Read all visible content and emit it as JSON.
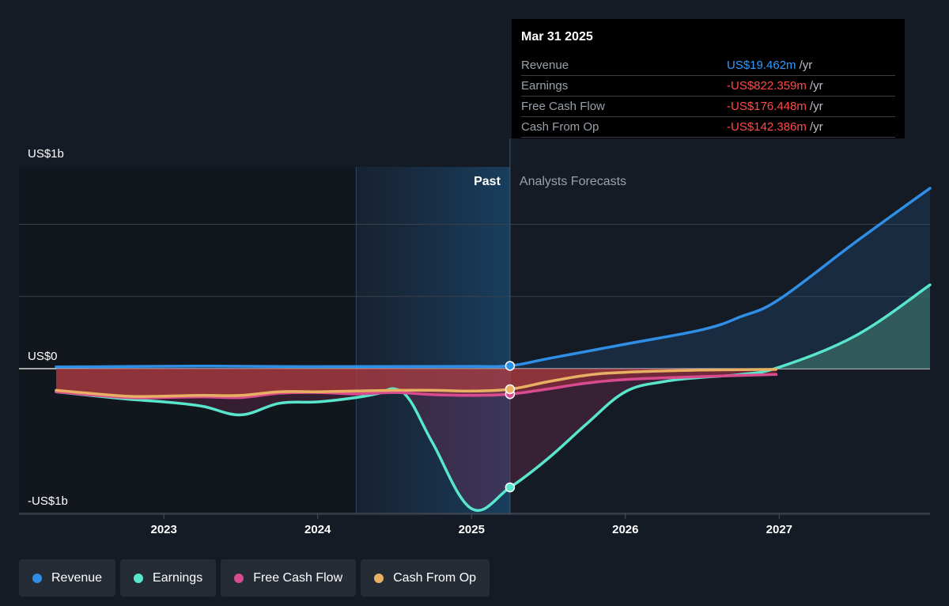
{
  "tooltip": {
    "date": "Mar 31 2025",
    "rows": [
      {
        "label": "Revenue",
        "value": "US$19.462m",
        "unit": "/yr"
      },
      {
        "label": "Earnings",
        "value": "-US$822.359m",
        "unit": "/yr"
      },
      {
        "label": "Free Cash Flow",
        "value": "-US$176.448m",
        "unit": "/yr"
      },
      {
        "label": "Cash From Op",
        "value": "-US$142.386m",
        "unit": "/yr"
      }
    ]
  },
  "legend": [
    {
      "label": "Revenue",
      "color": "#2f8fe6"
    },
    {
      "label": "Earnings",
      "color": "#58e6cc"
    },
    {
      "label": "Free Cash Flow",
      "color": "#d84c8f"
    },
    {
      "label": "Cash From Op",
      "color": "#e8b063"
    }
  ],
  "chart_data": {
    "type": "line",
    "y_tick_labels": [
      "US$1b",
      "US$0",
      "-US$1b"
    ],
    "ylim_millions": [
      -1000,
      1000
    ],
    "x_tick_labels": [
      "2023",
      "2024",
      "2025",
      "2026",
      "2027"
    ],
    "xlim_years": [
      2022.3,
      2027.98
    ],
    "past_label": "Past",
    "forecast_label": "Analysts Forecasts",
    "divider_x": 2025.25,
    "past_band_start": 2024.25,
    "grid": true,
    "legend_position": "bottom",
    "units": "US$ millions",
    "series": [
      {
        "name": "Revenue",
        "color": "#2f8fe6",
        "points": [
          [
            2022.3,
            12
          ],
          [
            2022.75,
            15
          ],
          [
            2023.25,
            18
          ],
          [
            2023.75,
            15
          ],
          [
            2024.0,
            14
          ],
          [
            2024.5,
            15
          ],
          [
            2025.0,
            16
          ],
          [
            2025.25,
            19.5
          ],
          [
            2025.5,
            70
          ],
          [
            2026.0,
            170
          ],
          [
            2026.5,
            270
          ],
          [
            2026.75,
            360
          ],
          [
            2027.0,
            480
          ],
          [
            2027.5,
            880
          ],
          [
            2027.98,
            1250
          ]
        ],
        "marker": [
          2025.25,
          19.5
        ]
      },
      {
        "name": "Earnings",
        "color": "#58e6cc",
        "points": [
          [
            2022.3,
            -160
          ],
          [
            2022.75,
            -210
          ],
          [
            2023.0,
            -230
          ],
          [
            2023.25,
            -260
          ],
          [
            2023.5,
            -320
          ],
          [
            2023.75,
            -240
          ],
          [
            2024.0,
            -230
          ],
          [
            2024.25,
            -200
          ],
          [
            2024.4,
            -170
          ],
          [
            2024.5,
            -140
          ],
          [
            2024.6,
            -220
          ],
          [
            2024.75,
            -520
          ],
          [
            2025.0,
            -970
          ],
          [
            2025.25,
            -822.4
          ],
          [
            2025.5,
            -620
          ],
          [
            2025.75,
            -380
          ],
          [
            2026.0,
            -160
          ],
          [
            2026.25,
            -90
          ],
          [
            2026.5,
            -60
          ],
          [
            2026.75,
            -40
          ],
          [
            2027.0,
            10
          ],
          [
            2027.5,
            230
          ],
          [
            2027.98,
            580
          ]
        ],
        "marker": [
          2025.25,
          -822.4
        ]
      },
      {
        "name": "Free Cash Flow",
        "color": "#d84c8f",
        "points": [
          [
            2022.3,
            -160
          ],
          [
            2022.75,
            -200
          ],
          [
            2023.0,
            -200
          ],
          [
            2023.25,
            -195
          ],
          [
            2023.5,
            -200
          ],
          [
            2023.75,
            -170
          ],
          [
            2024.0,
            -165
          ],
          [
            2024.25,
            -175
          ],
          [
            2024.5,
            -165
          ],
          [
            2024.75,
            -180
          ],
          [
            2025.0,
            -185
          ],
          [
            2025.25,
            -176.4
          ],
          [
            2025.5,
            -140
          ],
          [
            2025.75,
            -100
          ],
          [
            2026.0,
            -75
          ],
          [
            2026.5,
            -55
          ],
          [
            2026.98,
            -40
          ]
        ],
        "marker": [
          2025.25,
          -176.4
        ]
      },
      {
        "name": "Cash From Op",
        "color": "#e8b063",
        "points": [
          [
            2022.3,
            -150
          ],
          [
            2022.75,
            -190
          ],
          [
            2023.0,
            -190
          ],
          [
            2023.25,
            -185
          ],
          [
            2023.5,
            -185
          ],
          [
            2023.75,
            -160
          ],
          [
            2024.0,
            -160
          ],
          [
            2024.25,
            -155
          ],
          [
            2024.5,
            -150
          ],
          [
            2024.75,
            -150
          ],
          [
            2025.0,
            -155
          ],
          [
            2025.25,
            -142.4
          ],
          [
            2025.5,
            -90
          ],
          [
            2025.75,
            -45
          ],
          [
            2026.0,
            -25
          ],
          [
            2026.5,
            -10
          ],
          [
            2026.98,
            -5
          ]
        ],
        "marker": [
          2025.25,
          -142.4
        ]
      }
    ]
  }
}
